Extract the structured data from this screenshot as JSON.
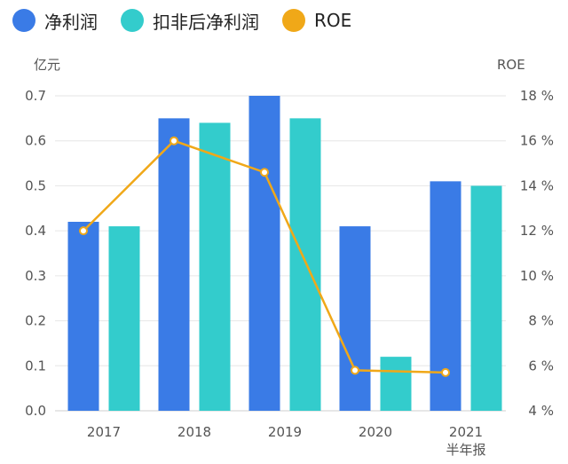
{
  "chart_data": {
    "type": "bar",
    "categories": [
      "2017",
      "2018",
      "2019",
      "2020",
      "2021"
    ],
    "category_sublabels": [
      "",
      "",
      "",
      "",
      "半年报"
    ],
    "series": [
      {
        "name": "净利润",
        "kind": "bar",
        "axis": "left",
        "color": "#3a7be6",
        "values": [
          0.42,
          0.65,
          0.7,
          0.41,
          0.51
        ]
      },
      {
        "name": "扣非后净利润",
        "kind": "bar",
        "axis": "left",
        "color": "#33cccc",
        "values": [
          0.41,
          0.64,
          0.65,
          0.12,
          0.5
        ]
      },
      {
        "name": "ROE",
        "kind": "line",
        "axis": "right",
        "color": "#f0a818",
        "values": [
          12.0,
          16.0,
          14.6,
          5.8,
          5.7
        ]
      }
    ],
    "left_axis": {
      "unit": "亿元",
      "ylim": [
        0,
        0.7
      ],
      "ticks": [
        "0.0",
        "0.1",
        "0.2",
        "0.3",
        "0.4",
        "0.5",
        "0.6",
        "0.7"
      ]
    },
    "right_axis": {
      "unit": "ROE",
      "ylim": [
        4,
        18
      ],
      "ticks": [
        "4 %",
        "6 %",
        "8 %",
        "10 %",
        "12 %",
        "14 %",
        "16 %",
        "18 %"
      ]
    },
    "grid": true,
    "legend_position": "top-left"
  }
}
